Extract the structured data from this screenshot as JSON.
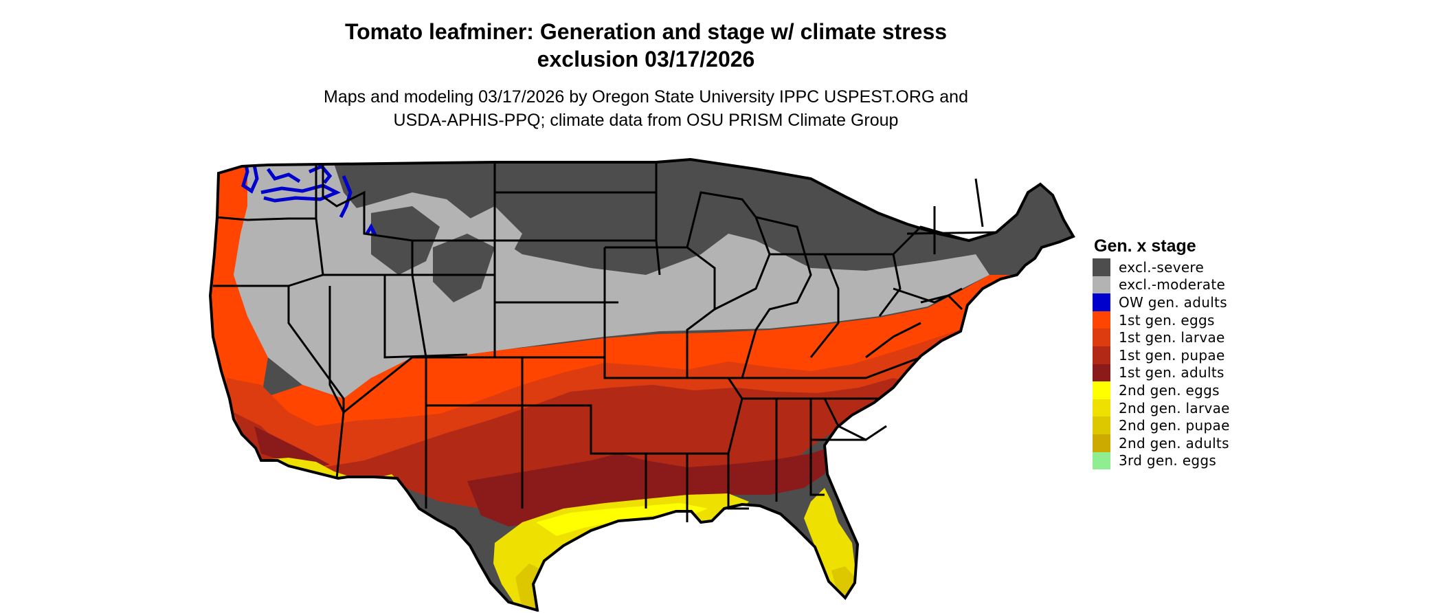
{
  "header": {
    "title_line1": "Tomato leafminer: Generation and stage w/ climate stress",
    "title_line2": "exclusion 03/17/2026",
    "subtitle_line1": "Maps and modeling 03/17/2026 by Oregon State University IPPC USPEST.ORG and",
    "subtitle_line2": "USDA-APHIS-PPQ; climate data from OSU PRISM Climate Group"
  },
  "legend": {
    "title": "Gen. x stage",
    "items": [
      {
        "label": "excl.-severe",
        "color": "#4d4d4d"
      },
      {
        "label": "excl.-moderate",
        "color": "#b3b3b3"
      },
      {
        "label": "OW gen. adults",
        "color": "#0000cc"
      },
      {
        "label": "1st gen. eggs",
        "color": "#ff4500"
      },
      {
        "label": "1st gen. larvae",
        "color": "#dd3b10"
      },
      {
        "label": "1st gen. pupae",
        "color": "#b22a15"
      },
      {
        "label": "1st gen. adults",
        "color": "#8b1a1a"
      },
      {
        "label": "2nd gen. eggs",
        "color": "#ffff00"
      },
      {
        "label": "2nd gen. larvae",
        "color": "#eee000"
      },
      {
        "label": "2nd gen. pupae",
        "color": "#ddc800"
      },
      {
        "label": "2nd gen. adults",
        "color": "#ccaa00"
      },
      {
        "label": "3rd gen. eggs",
        "color": "#90ee90"
      }
    ]
  }
}
